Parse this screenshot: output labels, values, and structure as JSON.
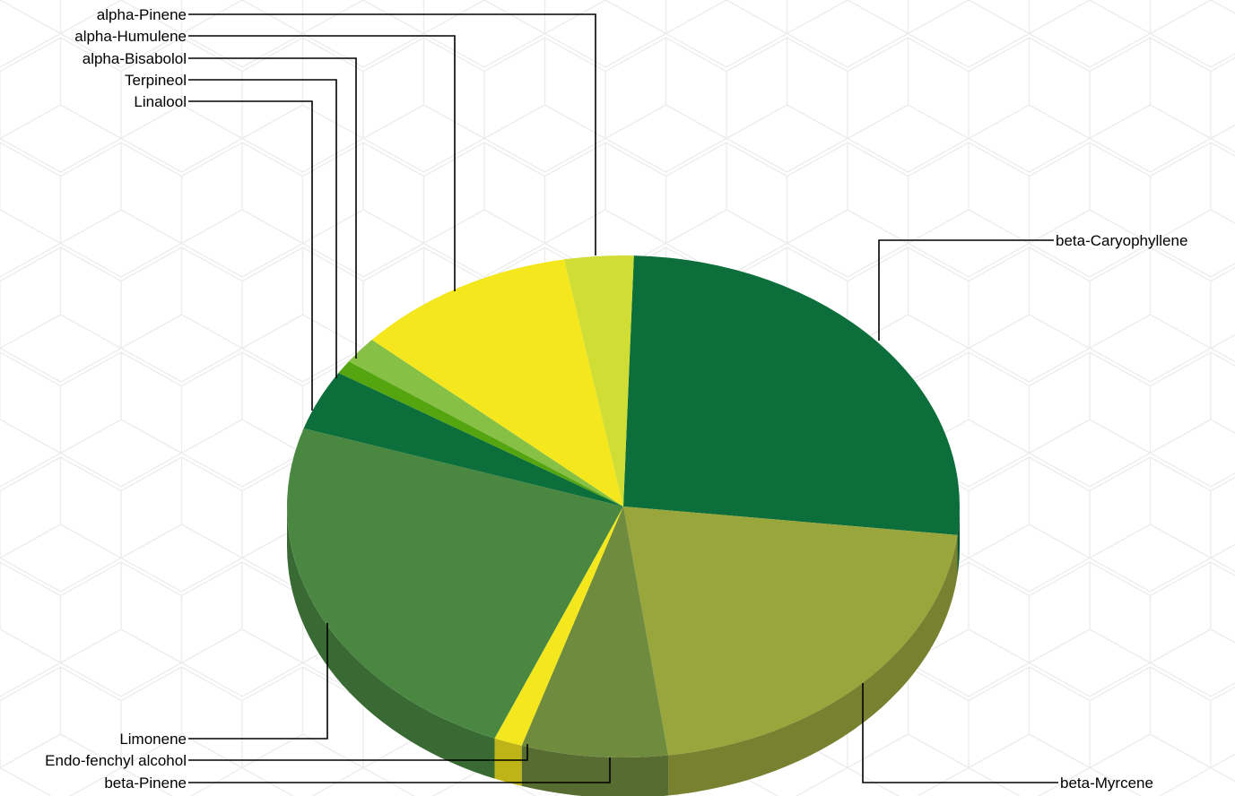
{
  "chart_data": {
    "type": "pie",
    "style": "3d",
    "title": "",
    "slices": [
      {
        "label": "beta-Caryophyllene",
        "value": 27.0,
        "color": "#0b6e3b"
      },
      {
        "label": "beta-Myrcene",
        "value": 21.6,
        "color": "#99a63c"
      },
      {
        "label": "beta-Pinene",
        "value": 7.2,
        "color": "#6f8b3e"
      },
      {
        "label": "Endo-fenchyl alcohol",
        "value": 1.4,
        "color": "#f4e71e"
      },
      {
        "label": "Limonene",
        "value": 24.4,
        "color": "#4a8842"
      },
      {
        "label": "Linalool",
        "value": 4.0,
        "color": "#0b6e3b"
      },
      {
        "label": "Terpineol",
        "value": 0.9,
        "color": "#55a510"
      },
      {
        "label": "alpha-Bisabolol",
        "value": 1.8,
        "color": "#86c044"
      },
      {
        "label": "alpha-Humulene",
        "value": 10.9,
        "color": "#f4e71e"
      },
      {
        "label": "alpha-Pinene",
        "value": 3.4,
        "color": "#cfdd34"
      }
    ]
  }
}
